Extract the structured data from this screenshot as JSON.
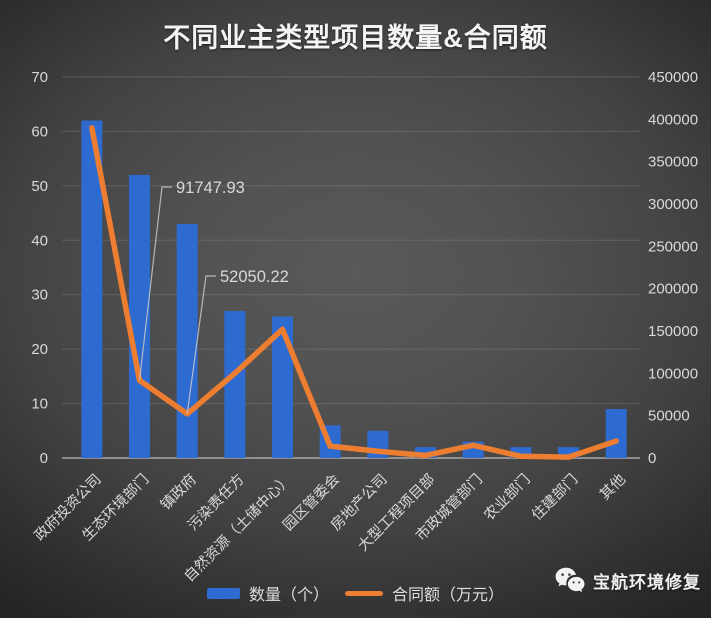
{
  "title": "不同业主类型项目数量&合同额",
  "legend": [
    {
      "label": "数量（个）",
      "color": "#2e6bd0",
      "type": "bar"
    },
    {
      "label": "合同额（万元）",
      "color": "#ed7d31",
      "type": "line"
    }
  ],
  "watermark": {
    "name": "宝航环境修复",
    "icon": "wechat-icon"
  },
  "colors": {
    "bar": "#2e6bd0",
    "line": "#ed7d31",
    "axis_text": "#d9d9d9",
    "grid": "#8a8a8a",
    "axis_line": "#a9a9a9",
    "annotation_text": "#d9d9d9",
    "leader_line": "#c8c8c8"
  },
  "chart_data": {
    "type": "bar",
    "subtype": "combo-bar-line-dual-axis",
    "title": "不同业主类型项目数量&合同额",
    "categories": [
      "政府投资公司",
      "生态环境部门",
      "镇政府",
      "污染责任方",
      "自然资源（土储中心）",
      "园区管委会",
      "房地产公司",
      "大型工程项目部",
      "市政城管部门",
      "农业部门",
      "住建部门",
      "其他"
    ],
    "series": [
      {
        "name": "数量（个）",
        "type": "bar",
        "axis": "left",
        "color": "#2e6bd0",
        "values": [
          62,
          52,
          43,
          27,
          26,
          6,
          5,
          2,
          3,
          2,
          2,
          9
        ]
      },
      {
        "name": "合同额（万元）",
        "type": "line",
        "axis": "right",
        "color": "#ed7d31",
        "values": [
          390000,
          91747.93,
          52050.22,
          100000,
          152000,
          14000,
          8000,
          3000,
          15000,
          2000,
          1000,
          20000
        ]
      }
    ],
    "left_axis": {
      "min": 0,
      "max": 70,
      "step": 10,
      "ticks": [
        0,
        10,
        20,
        30,
        40,
        50,
        60,
        70
      ]
    },
    "right_axis": {
      "min": 0,
      "max": 450000,
      "step": 50000,
      "ticks": [
        0,
        50000,
        100000,
        150000,
        200000,
        250000,
        300000,
        350000,
        400000,
        450000
      ]
    },
    "annotations": [
      {
        "text": "91747.93",
        "series": "合同额（万元）",
        "category_index": 1
      },
      {
        "text": "52050.22",
        "series": "合同额（万元）",
        "category_index": 2
      }
    ],
    "grid": true,
    "legend_position": "bottom",
    "xlabel": "",
    "ylabel_left": "数量（个）",
    "ylabel_right": "合同额（万元）"
  }
}
